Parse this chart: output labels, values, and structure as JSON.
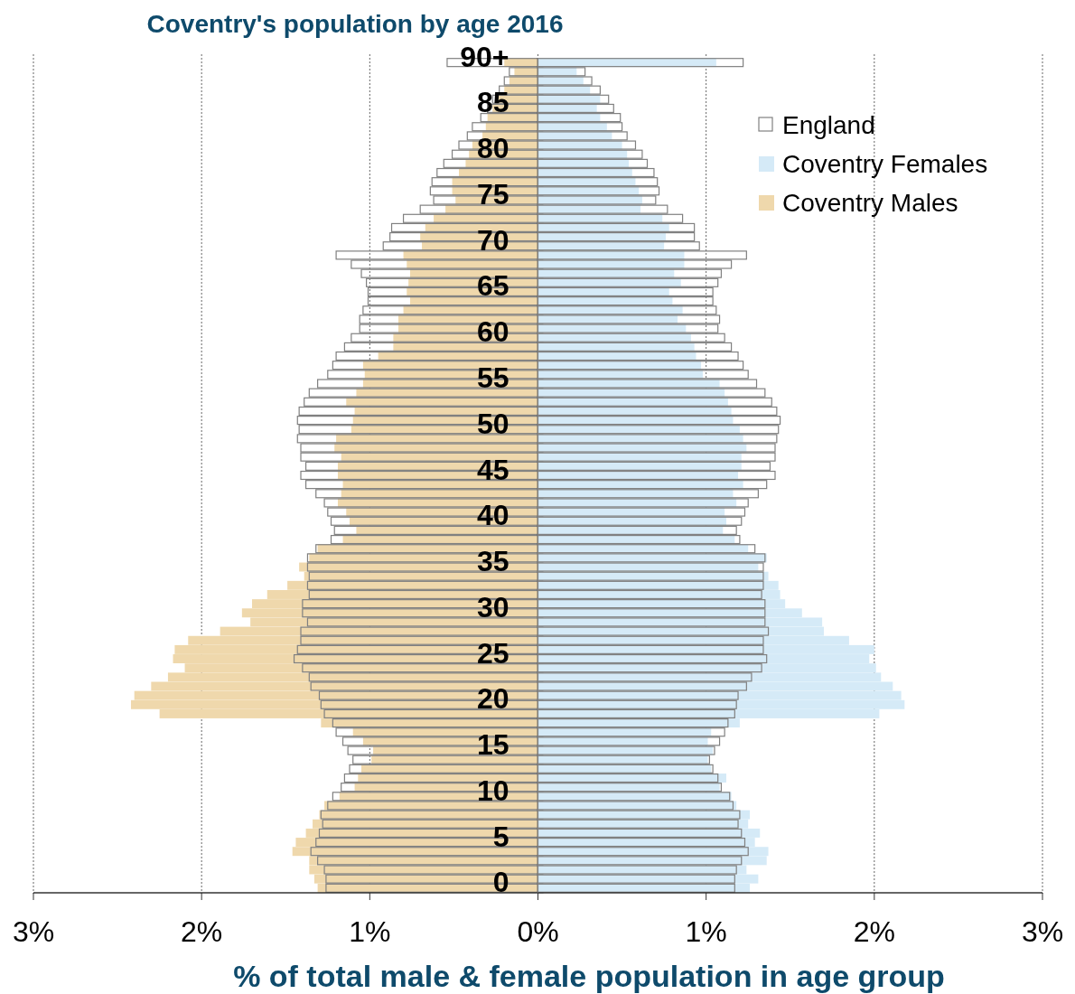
{
  "chart_data": [
    {
      "type": "bar",
      "orientation": "horizontal",
      "title": "Coventry's population by age 2016",
      "xlabel": "% of total male & female population in age group",
      "categories": [
        null,
        null,
        null,
        null,
        null,
        null,
        null,
        null,
        null,
        null,
        null,
        null,
        null,
        null,
        null,
        null,
        null,
        null,
        null,
        null,
        null,
        null,
        null,
        null,
        null,
        null,
        null,
        null,
        null,
        null,
        null,
        null,
        null,
        null,
        null,
        null,
        null,
        null,
        null,
        null,
        null,
        null,
        null,
        null,
        null,
        null,
        null,
        null,
        null,
        null,
        null,
        null,
        null,
        null,
        null,
        null,
        null,
        null,
        null,
        null,
        null,
        null,
        null,
        null,
        null,
        null,
        null,
        null,
        null,
        null,
        null,
        null,
        null,
        null,
        null,
        null,
        null,
        null,
        null,
        null,
        null,
        null,
        null,
        null,
        null,
        null,
        null,
        null,
        null,
        null,
        null
      ],
      "xlim": [
        3,
        0
      ],
      "xticks": [
        {
          "value": 3,
          "label": "3%"
        },
        {
          "value": 2,
          "label": "2%"
        },
        {
          "value": 1,
          "label": "1%"
        }
      ],
      "tick_labels": "x",
      "grid": "x",
      "legend": "top right",
      "series": [
        {
          "name": "Coventry Males",
          "color": "#efd8ac",
          "values": [
            0.2,
            0.14,
            0.17,
            0.2,
            0.25,
            0.27,
            0.3,
            0.31,
            0.33,
            0.39,
            0.41,
            0.43,
            0.47,
            0.51,
            0.51,
            0.49,
            0.55,
            0.62,
            0.67,
            0.7,
            0.69,
            0.8,
            0.78,
            0.76,
            0.77,
            0.78,
            0.76,
            0.8,
            0.83,
            0.83,
            0.86,
            0.86,
            0.95,
            1.04,
            1.03,
            1.04,
            1.08,
            1.14,
            1.09,
            1.1,
            1.11,
            1.2,
            1.21,
            1.17,
            1.19,
            1.19,
            1.16,
            1.17,
            1.19,
            1.14,
            1.12,
            1.08,
            1.16,
            1.31,
            1.36,
            1.42,
            1.39,
            1.49,
            1.61,
            1.7,
            1.76,
            1.71,
            1.89,
            2.08,
            2.16,
            2.17,
            2.1,
            2.2,
            2.3,
            2.4,
            2.42,
            2.25,
            1.29,
            1.1,
            1.04,
            0.98,
            0.99,
            1.05,
            1.07,
            1.09,
            1.18,
            1.27,
            1.3,
            1.34,
            1.38,
            1.44,
            1.46,
            1.36,
            1.36,
            1.33,
            1.31
          ]
        },
        {
          "color": "#808080",
          "values": [
            0.54,
            0.17,
            0.2,
            0.23,
            0.27,
            0.3,
            0.34,
            0.39,
            0.42,
            0.47,
            0.51,
            0.56,
            0.6,
            0.63,
            0.64,
            0.62,
            0.7,
            0.8,
            0.87,
            0.88,
            0.92,
            1.2,
            1.11,
            1.05,
            1.02,
            1.01,
            1.01,
            1.04,
            1.06,
            1.06,
            1.11,
            1.15,
            1.2,
            1.22,
            1.25,
            1.31,
            1.36,
            1.39,
            1.42,
            1.43,
            1.42,
            1.43,
            1.41,
            1.41,
            1.38,
            1.41,
            1.38,
            1.32,
            1.27,
            1.25,
            1.23,
            1.21,
            1.23,
            1.32,
            1.37,
            1.37,
            1.36,
            1.37,
            1.36,
            1.4,
            1.4,
            1.37,
            1.41,
            1.41,
            1.43,
            1.45,
            1.4,
            1.36,
            1.35,
            1.3,
            1.29,
            1.27,
            1.22,
            1.2,
            1.16,
            1.13,
            1.1,
            1.12,
            1.15,
            1.17,
            1.22,
            1.25,
            1.29,
            1.28,
            1.3,
            1.32,
            1.35,
            1.31,
            1.27,
            1.26,
            1.26
          ]
        }
      ]
    },
    {
      "type": "bar",
      "orientation": "horizontal",
      "categories": [
        "90+",
        null,
        null,
        null,
        null,
        "85",
        null,
        null,
        null,
        null,
        "80",
        null,
        null,
        null,
        null,
        "75",
        null,
        null,
        null,
        null,
        "70",
        null,
        null,
        null,
        null,
        "65",
        null,
        null,
        null,
        null,
        "60",
        null,
        null,
        null,
        null,
        "55",
        null,
        null,
        null,
        null,
        "50",
        null,
        null,
        null,
        null,
        "45",
        null,
        null,
        null,
        null,
        "40",
        null,
        null,
        null,
        null,
        "35",
        null,
        null,
        null,
        null,
        "30",
        null,
        null,
        null,
        null,
        "25",
        null,
        null,
        null,
        null,
        "20",
        null,
        null,
        null,
        null,
        "15",
        null,
        null,
        null,
        null,
        "10",
        null,
        null,
        null,
        null,
        "5",
        null,
        null,
        null,
        null,
        "0"
      ],
      "xlim": [
        0,
        3
      ],
      "xticks": [
        {
          "value": 0,
          "label": "0%"
        },
        {
          "value": 1,
          "label": "1%"
        },
        {
          "value": 2,
          "label": "2%"
        },
        {
          "value": 3,
          "label": "3%"
        }
      ],
      "grid": "x",
      "legend": "top right",
      "series": [
        {
          "name": "England",
          "color": "#808080",
          "values": [
            1.22,
            0.28,
            0.32,
            0.37,
            0.42,
            0.45,
            0.49,
            0.5,
            0.53,
            0.58,
            0.62,
            0.65,
            0.69,
            0.71,
            0.72,
            0.7,
            0.77,
            0.86,
            0.93,
            0.93,
            0.96,
            1.24,
            1.15,
            1.09,
            1.07,
            1.04,
            1.04,
            1.06,
            1.08,
            1.07,
            1.11,
            1.15,
            1.19,
            1.22,
            1.25,
            1.3,
            1.35,
            1.39,
            1.42,
            1.44,
            1.43,
            1.42,
            1.41,
            1.41,
            1.38,
            1.41,
            1.36,
            1.31,
            1.25,
            1.23,
            1.21,
            1.18,
            1.2,
            1.29,
            1.35,
            1.34,
            1.34,
            1.34,
            1.33,
            1.35,
            1.35,
            1.35,
            1.37,
            1.34,
            1.34,
            1.36,
            1.33,
            1.27,
            1.24,
            1.19,
            1.18,
            1.17,
            1.13,
            1.11,
            1.08,
            1.05,
            1.02,
            1.04,
            1.07,
            1.09,
            1.14,
            1.16,
            1.2,
            1.19,
            1.21,
            1.23,
            1.25,
            1.21,
            1.18,
            1.17,
            1.17
          ]
        },
        {
          "name": "Coventry Females",
          "color": "#d5eaf7",
          "values": [
            1.06,
            0.23,
            0.27,
            0.31,
            0.37,
            0.35,
            0.37,
            0.41,
            0.44,
            0.5,
            0.53,
            0.54,
            0.56,
            0.58,
            0.6,
            0.62,
            0.61,
            0.74,
            0.78,
            0.76,
            0.75,
            0.87,
            0.87,
            0.81,
            0.85,
            0.78,
            0.8,
            0.86,
            0.83,
            0.88,
            0.91,
            0.93,
            0.94,
            0.97,
            0.98,
            1.08,
            1.11,
            1.13,
            1.15,
            1.16,
            1.2,
            1.22,
            1.24,
            1.21,
            1.21,
            1.19,
            1.22,
            1.16,
            1.18,
            1.11,
            1.12,
            1.1,
            1.17,
            1.25,
            1.36,
            1.31,
            1.37,
            1.43,
            1.44,
            1.47,
            1.57,
            1.69,
            1.7,
            1.85,
            2.0,
            1.97,
            2.01,
            2.04,
            2.11,
            2.16,
            2.18,
            2.03,
            1.2,
            1.03,
            1.01,
            1.04,
            1.01,
            1.03,
            1.12,
            1.08,
            1.15,
            1.18,
            1.26,
            1.25,
            1.32,
            1.29,
            1.37,
            1.36,
            1.24,
            1.31,
            1.26
          ]
        }
      ]
    }
  ]
}
